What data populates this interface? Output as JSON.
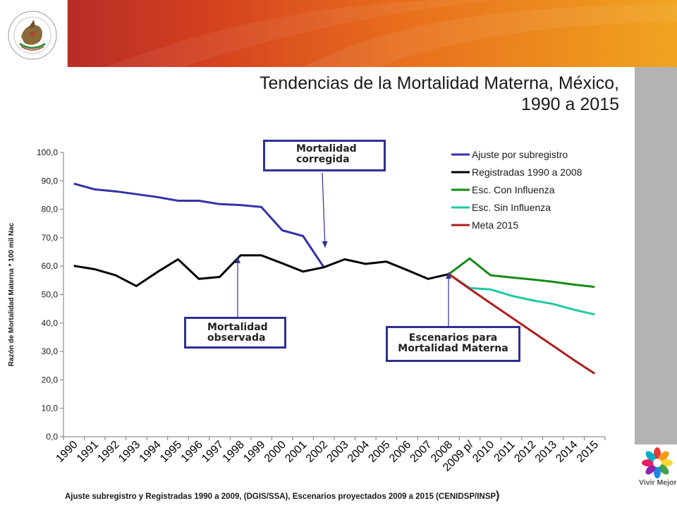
{
  "header": {
    "band_colors": [
      "#b0282a",
      "#d9441f",
      "#ec7a1c",
      "#f0a020"
    ],
    "seal_icon": "mexico-coat-of-arms-icon"
  },
  "title": {
    "line1": "Tendencias de la Mortalidad Materna, México,",
    "line2": "1990 a 2015"
  },
  "callouts": {
    "corrected": {
      "line1": "Mortalidad",
      "line2": "corregida"
    },
    "observed": {
      "line1": "Mortalidad",
      "line2": "observada"
    },
    "scenarios": {
      "line1": "Escenarios para",
      "line2": "Mortalidad Materna"
    }
  },
  "footer": {
    "text": "Ajuste subregistro y Registradas 1990 a 2009,  (DGIS/SSA),  Escenarios proyectados 2009 a 2015 (CENIDSP/INSP",
    "close_paren": ")"
  },
  "logo": {
    "text": "Vivir Mejor",
    "icon": "vivir-mejor-flower-icon"
  },
  "chart_data": {
    "type": "line",
    "ylabel": "Razón de Mortalidad Materna * 100 mil Nac",
    "xlabel": "",
    "ylim": [
      0,
      100
    ],
    "yticks": [
      "0,0",
      "10,0",
      "20,0",
      "30,0",
      "40,0",
      "50,0",
      "60,0",
      "70,0",
      "80,0",
      "90,0",
      "100,0"
    ],
    "categories": [
      "1990",
      "1991",
      "1992",
      "1993",
      "1994",
      "1995",
      "1996",
      "1997",
      "1998",
      "1999",
      "2000",
      "2001",
      "2002",
      "2003",
      "2004",
      "2005",
      "2006",
      "2007",
      "2008",
      "2009 p/",
      "2010",
      "2011",
      "2012",
      "2013",
      "2014",
      "2015"
    ],
    "grid": false,
    "legend_position": "top-right",
    "series": [
      {
        "name": "Ajuste por subregistro",
        "color": "#3333aa",
        "values": [
          89.0,
          87.0,
          86.3,
          85.3,
          84.3,
          83.0,
          83.0,
          81.8,
          81.5,
          80.8,
          72.6,
          70.6,
          59.6,
          null,
          null,
          null,
          null,
          null,
          null,
          null,
          null,
          null,
          null,
          null,
          null,
          null
        ]
      },
      {
        "name": "Registradas 1990 a 2008",
        "color": "#000000",
        "values": [
          60.1,
          58.9,
          56.8,
          53.0,
          57.9,
          62.4,
          55.5,
          56.2,
          63.8,
          63.8,
          61.0,
          58.1,
          59.6,
          62.4,
          60.8,
          61.6,
          58.6,
          55.5,
          57.2,
          null,
          null,
          null,
          null,
          null,
          null,
          null
        ]
      },
      {
        "name": "Esc. Con Influenza",
        "color": "#168a16",
        "values": [
          null,
          null,
          null,
          null,
          null,
          null,
          null,
          null,
          null,
          null,
          null,
          null,
          null,
          null,
          null,
          null,
          null,
          null,
          57.2,
          62.7,
          56.8,
          56.0,
          55.3,
          54.5,
          53.5,
          52.7
        ]
      },
      {
        "name": "Esc. Sin Influenza",
        "color": "#1fc9a5",
        "values": [
          null,
          null,
          null,
          null,
          null,
          null,
          null,
          null,
          null,
          null,
          null,
          null,
          null,
          null,
          null,
          null,
          null,
          null,
          57.2,
          52.3,
          51.8,
          49.6,
          48.0,
          46.7,
          44.7,
          43.0
        ]
      },
      {
        "name": "Meta 2015",
        "color": "#b01e1e",
        "values": [
          null,
          null,
          null,
          null,
          null,
          null,
          null,
          null,
          null,
          null,
          null,
          null,
          null,
          null,
          null,
          null,
          null,
          null,
          57.2,
          52.0,
          47.0,
          42.0,
          37.0,
          32.0,
          27.0,
          22.2
        ]
      }
    ]
  }
}
